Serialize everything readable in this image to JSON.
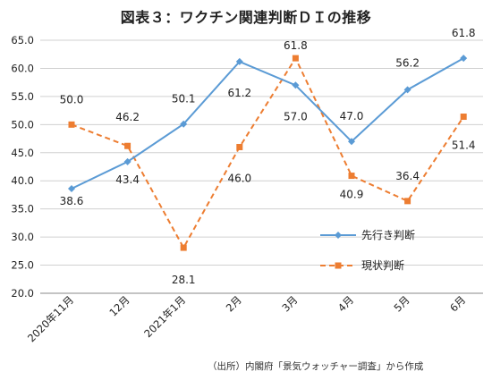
{
  "chart_data": {
    "type": "line",
    "title": "図表３：ワクチン関連判断ＤＩの推移",
    "source": "（出所）内閣府「景気ウォッチャー調査」から作成",
    "categories": [
      "2020年11月",
      "12月",
      "2021年1月",
      "2月",
      "3月",
      "4月",
      "5月",
      "6月"
    ],
    "ylim": [
      20.0,
      65.0
    ],
    "yticks": [
      "20.0",
      "25.0",
      "30.0",
      "35.0",
      "40.0",
      "45.0",
      "50.0",
      "55.0",
      "60.0",
      "65.0"
    ],
    "grid": true,
    "legend_position": "lower-right",
    "series": [
      {
        "name": "先行き判断",
        "values": [
          38.6,
          43.4,
          50.1,
          61.2,
          57.0,
          47.0,
          56.2,
          61.8
        ],
        "labels": [
          "38.6",
          "43.4",
          "50.1",
          "61.2",
          "57.0",
          "47.0",
          "56.2",
          "61.8"
        ],
        "color": "#5b9bd5",
        "style": "solid",
        "marker": "diamond"
      },
      {
        "name": "現状判断",
        "values": [
          50.0,
          46.2,
          28.1,
          46.0,
          61.8,
          40.9,
          36.4,
          51.4
        ],
        "labels": [
          "50.0",
          "46.2",
          "28.1",
          "46.0",
          "61.8",
          "40.9",
          "36.4",
          "51.4"
        ],
        "color": "#ed7d31",
        "style": "dashed",
        "marker": "square"
      }
    ]
  }
}
